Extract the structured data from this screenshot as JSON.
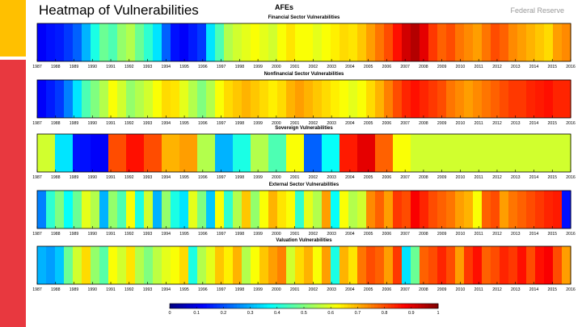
{
  "slide": {
    "title": "Heatmap of Vulnerabilities",
    "brand": "Federal Reserve"
  },
  "colors": {
    "accent_yellow": "#ffc000",
    "accent_red": "#e8383f"
  },
  "chart_data": {
    "type": "heatmap",
    "title": "AFEs",
    "years": [
      "1987",
      "1988",
      "1989",
      "1990",
      "1991",
      "1992",
      "1993",
      "1994",
      "1995",
      "1996",
      "1997",
      "1998",
      "1999",
      "2000",
      "2001",
      "2002",
      "2003",
      "2004",
      "2005",
      "2006",
      "2007",
      "2008",
      "2009",
      "2010",
      "2011",
      "2012",
      "2013",
      "2014",
      "2015",
      "2016"
    ],
    "colorbar": {
      "ticks": [
        "0",
        "0.1",
        "0.2",
        "0.3",
        "0.4",
        "0.5",
        "0.6",
        "0.7",
        "0.8",
        "0.9",
        "1"
      ],
      "range": [
        0,
        1
      ],
      "colormap": "jet"
    },
    "series": [
      {
        "name": "Financial Sector Vulnerabilities",
        "values": [
          0.12,
          0.14,
          0.15,
          0.18,
          0.22,
          0.3,
          0.4,
          0.48,
          0.45,
          0.52,
          0.55,
          0.48,
          0.42,
          0.35,
          0.22,
          0.14,
          0.12,
          0.15,
          0.18,
          0.35,
          0.45,
          0.55,
          0.58,
          0.6,
          0.62,
          0.6,
          0.58,
          0.62,
          0.65,
          0.62,
          0.62,
          0.6,
          0.62,
          0.64,
          0.66,
          0.65,
          0.68,
          0.72,
          0.76,
          0.8,
          0.86,
          0.92,
          0.95,
          0.9,
          0.82,
          0.78,
          0.8,
          0.76,
          0.74,
          0.72,
          0.76,
          0.8,
          0.78,
          0.74,
          0.72,
          0.7,
          0.68,
          0.66,
          0.72,
          0.74
        ]
      },
      {
        "name": "Nonfinancial Sector Vulnerabilities",
        "values": [
          0.12,
          0.15,
          0.18,
          0.25,
          0.35,
          0.45,
          0.5,
          0.55,
          0.62,
          0.58,
          0.52,
          0.55,
          0.58,
          0.62,
          0.66,
          0.65,
          0.6,
          0.55,
          0.5,
          0.55,
          0.62,
          0.66,
          0.68,
          0.7,
          0.68,
          0.66,
          0.64,
          0.66,
          0.7,
          0.72,
          0.7,
          0.68,
          0.66,
          0.64,
          0.62,
          0.6,
          0.62,
          0.66,
          0.7,
          0.75,
          0.8,
          0.84,
          0.86,
          0.84,
          0.82,
          0.8,
          0.76,
          0.74,
          0.72,
          0.74,
          0.76,
          0.78,
          0.8,
          0.82,
          0.82,
          0.84,
          0.85,
          0.86,
          0.84,
          0.84
        ]
      },
      {
        "name": "Sovereign Vulnerabilities",
        "values": [
          0.58,
          0.58,
          0.35,
          0.35,
          0.14,
          0.14,
          0.12,
          0.12,
          0.8,
          0.8,
          0.86,
          0.86,
          0.8,
          0.8,
          0.7,
          0.7,
          0.72,
          0.72,
          0.55,
          0.55,
          0.3,
          0.3,
          0.4,
          0.4,
          0.55,
          0.55,
          0.45,
          0.45,
          0.62,
          0.62,
          0.22,
          0.22,
          0.38,
          0.38,
          0.85,
          0.85,
          0.9,
          0.9,
          0.78,
          0.78,
          0.62,
          0.62,
          0.58,
          0.58,
          0.58,
          0.58,
          0.58,
          0.58,
          0.58,
          0.58,
          0.58,
          0.58,
          0.58,
          0.58,
          0.58,
          0.58,
          0.58,
          0.58,
          0.58,
          0.58
        ]
      },
      {
        "name": "External Sector Vulnerabilities",
        "values": [
          0.25,
          0.42,
          0.5,
          0.38,
          0.48,
          0.6,
          0.55,
          0.3,
          0.52,
          0.45,
          0.62,
          0.4,
          0.58,
          0.3,
          0.52,
          0.4,
          0.35,
          0.6,
          0.5,
          0.32,
          0.62,
          0.42,
          0.55,
          0.68,
          0.52,
          0.62,
          0.7,
          0.65,
          0.62,
          0.42,
          0.6,
          0.55,
          0.72,
          0.38,
          0.62,
          0.55,
          0.58,
          0.74,
          0.78,
          0.72,
          0.82,
          0.8,
          0.88,
          0.84,
          0.8,
          0.78,
          0.76,
          0.72,
          0.7,
          0.62,
          0.78,
          0.8,
          0.72,
          0.76,
          0.78,
          0.8,
          0.82,
          0.84,
          0.85,
          0.14
        ]
      },
      {
        "name": "Valuation Vulnerabilities",
        "values": [
          0.3,
          0.28,
          0.32,
          0.48,
          0.58,
          0.66,
          0.52,
          0.46,
          0.62,
          0.58,
          0.65,
          0.55,
          0.5,
          0.56,
          0.6,
          0.62,
          0.66,
          0.4,
          0.55,
          0.6,
          0.68,
          0.64,
          0.7,
          0.55,
          0.62,
          0.68,
          0.72,
          0.75,
          0.58,
          0.66,
          0.7,
          0.62,
          0.72,
          0.4,
          0.7,
          0.65,
          0.76,
          0.8,
          0.78,
          0.72,
          0.82,
          0.35,
          0.48,
          0.78,
          0.8,
          0.84,
          0.8,
          0.72,
          0.82,
          0.86,
          0.78,
          0.8,
          0.84,
          0.82,
          0.86,
          0.8,
          0.86,
          0.88,
          0.8,
          0.72
        ]
      }
    ]
  }
}
